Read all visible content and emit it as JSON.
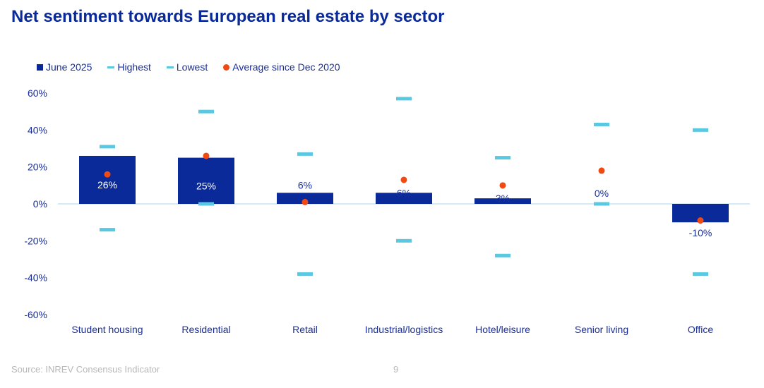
{
  "page": {
    "title": "Net sentiment towards European real estate by sector",
    "source": "Source: INREV Consensus Indicator",
    "page_number": "9"
  },
  "colors": {
    "bar": "#0a2a9a",
    "range_marker": "#5bc8e2",
    "average_dot": "#f04a12",
    "axis_text": "#1a2f9a",
    "zero_line": "#aed6ee"
  },
  "chart_data": {
    "type": "bar",
    "title": "Net sentiment towards European real estate by sector",
    "categories": [
      "Student housing",
      "Residential",
      "Retail",
      "Industrial/logistics",
      "Hotel/leisure",
      "Senior living",
      "Office"
    ],
    "ylim": [
      -60,
      60
    ],
    "yticks": [
      60,
      40,
      20,
      0,
      -20,
      -40,
      -60
    ],
    "ytick_labels": [
      "60%",
      "40%",
      "20%",
      "0%",
      "-20%",
      "-40%",
      "-60%"
    ],
    "legend_position": "top-left",
    "series": [
      {
        "name": "June 2025",
        "kind": "bar",
        "values": [
          26,
          25,
          6,
          6,
          3,
          0,
          -10
        ],
        "data_labels": [
          "26%",
          "25%",
          "6%",
          "6%",
          "3%",
          "0%",
          "-10%"
        ]
      },
      {
        "name": "Highest",
        "kind": "dash",
        "values": [
          31,
          50,
          27,
          57,
          25,
          43,
          40
        ]
      },
      {
        "name": "Lowest",
        "kind": "dash",
        "values": [
          -14,
          0,
          -38,
          -20,
          -28,
          0,
          -38
        ]
      },
      {
        "name": "Average since Dec 2020",
        "kind": "dot",
        "values": [
          16,
          26,
          1,
          13,
          10,
          18,
          -9
        ]
      }
    ]
  }
}
